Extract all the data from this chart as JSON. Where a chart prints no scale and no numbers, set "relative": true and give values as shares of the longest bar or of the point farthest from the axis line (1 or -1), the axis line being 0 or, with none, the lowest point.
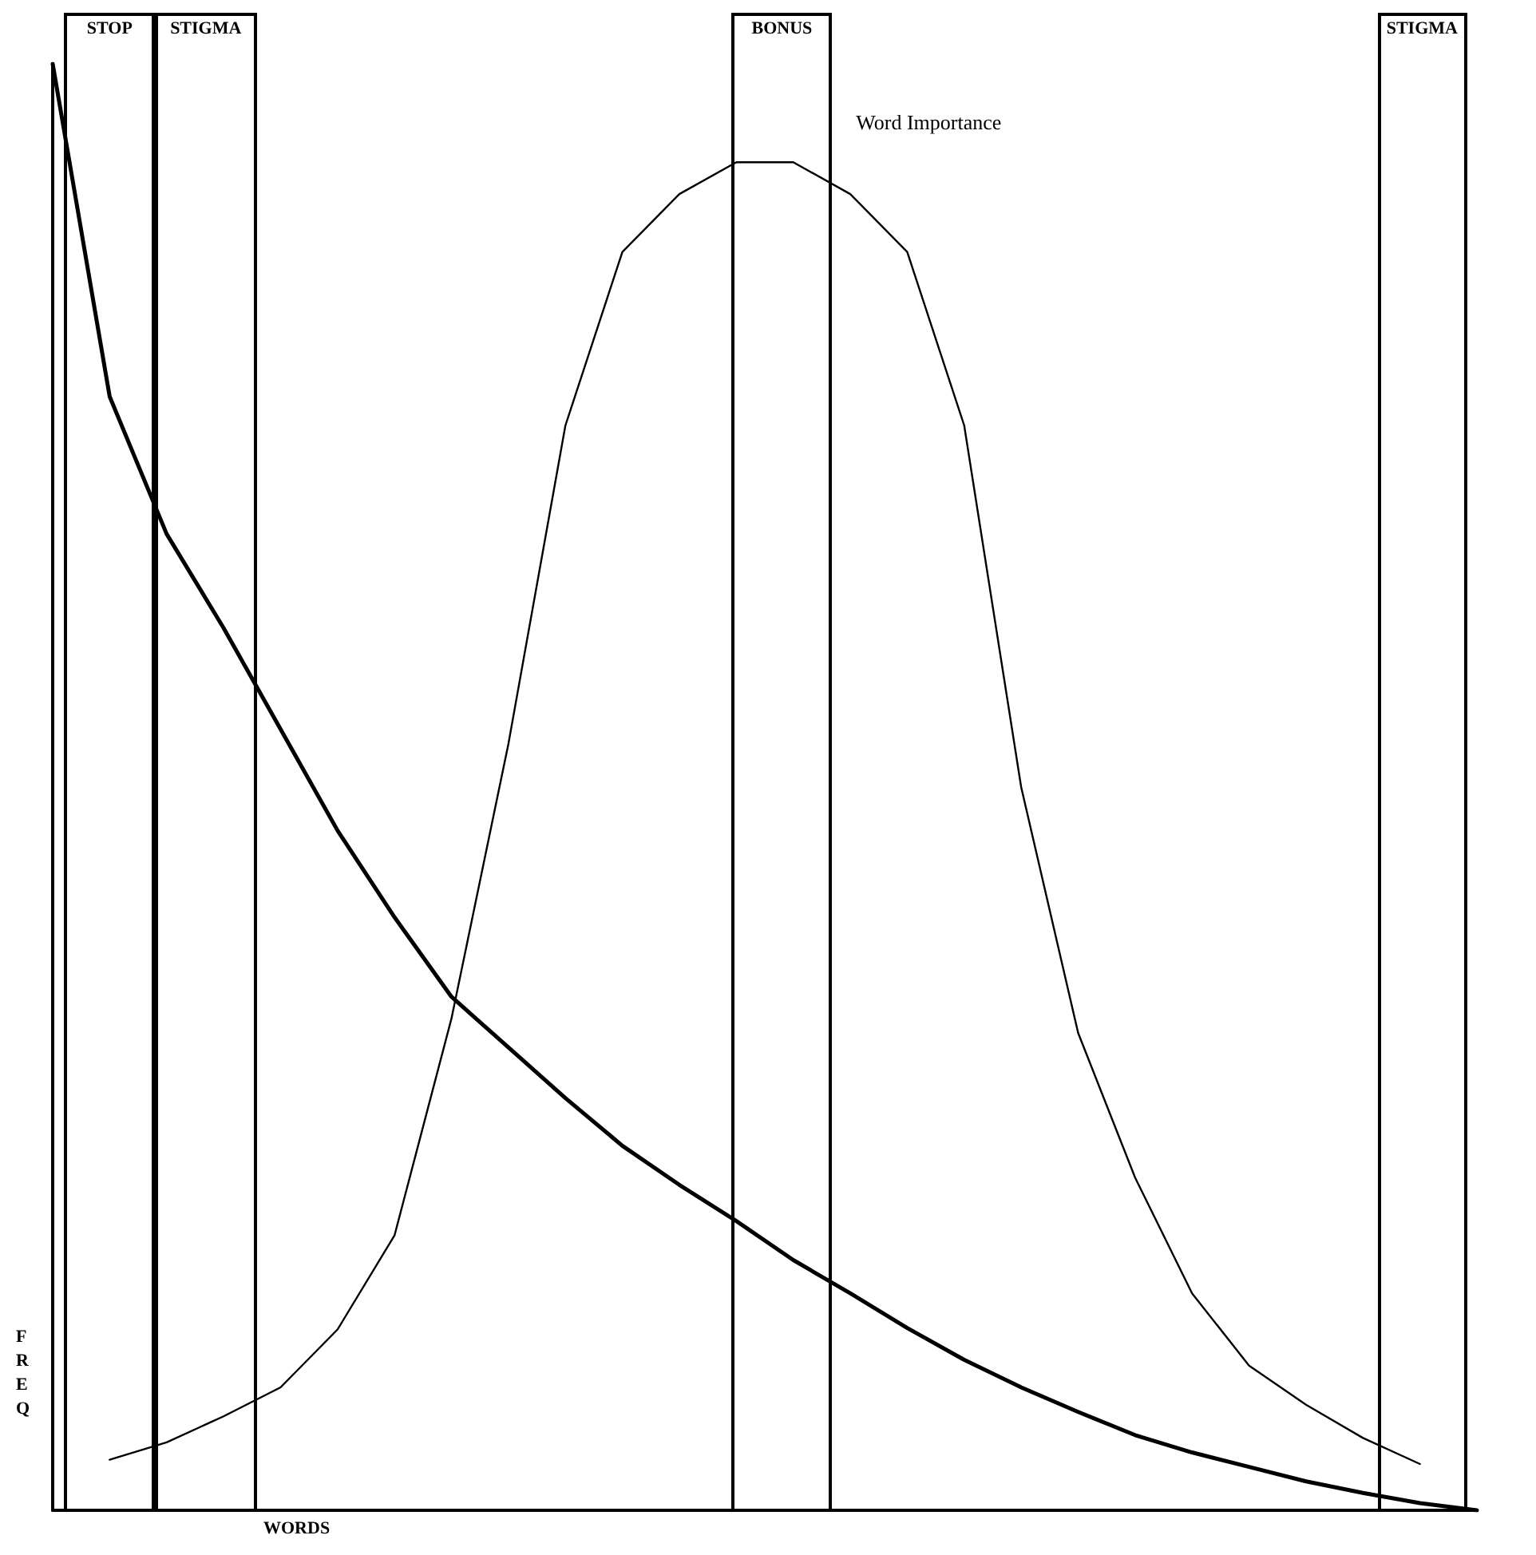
{
  "chart_data": {
    "type": "line",
    "relative": true,
    "xlabel": "WORDS",
    "ylabel": "FREQ",
    "grid": false,
    "legend": false,
    "marker": "none",
    "line_style": "solid",
    "categories": [
      null,
      null,
      null,
      null,
      null,
      null,
      null,
      null,
      null,
      null,
      null,
      null,
      null,
      null,
      null,
      null,
      null,
      null,
      null,
      null,
      null,
      null,
      null,
      null,
      null,
      null
    ],
    "series": [
      {
        "color": "#000000",
        "values": [
          1.0,
          0.77,
          0.675,
          0.61,
          0.54,
          0.47,
          0.41,
          0.355,
          0.32,
          0.285,
          0.252,
          0.225,
          0.2,
          0.173,
          0.15,
          0.126,
          0.104,
          0.085,
          0.068,
          0.052,
          0.04,
          0.03,
          0.02,
          0.012,
          0.005,
          0.0
        ]
      },
      {
        "name": "Word Importance",
        "color": "#000000",
        "values": [
          null,
          0.035,
          0.047,
          0.065,
          0.085,
          0.125,
          0.19,
          0.34,
          0.53,
          0.75,
          0.87,
          0.91,
          0.932,
          0.932,
          0.91,
          0.87,
          0.75,
          0.5,
          0.33,
          0.23,
          0.15,
          0.1,
          0.073,
          0.05,
          0.032,
          null
        ]
      }
    ],
    "annotations": [
      "STOP",
      "STIGMA",
      "BONUS",
      "STIGMA"
    ]
  }
}
